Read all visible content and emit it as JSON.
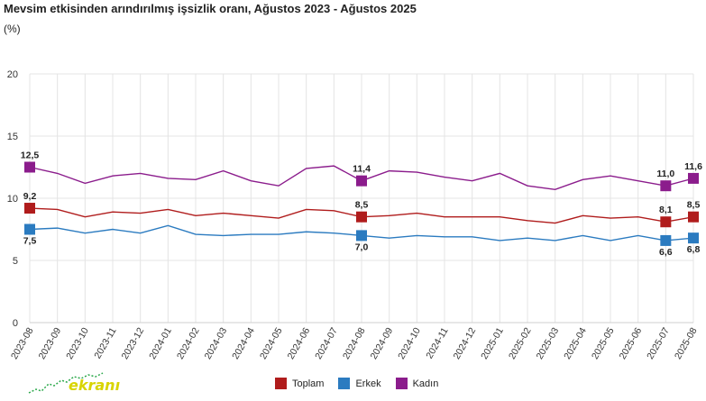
{
  "header": {
    "title": "Mevsim etkisinden arındırılmış işsizlik oranı, Ağustos 2023 - Ağustos 2025",
    "unit": "(%)"
  },
  "logo": {
    "text": "ekranı"
  },
  "chart_data": {
    "type": "line",
    "title": "Mevsim etkisinden arındırılmış işsizlik oranı, Ağustos 2023 - Ağustos 2025",
    "ylabel": "(%)",
    "ylim": [
      0,
      20
    ],
    "yticks": [
      0,
      5,
      10,
      15,
      20
    ],
    "grid": true,
    "legend_position": "bottom",
    "categories": [
      "2023-08",
      "2023-09",
      "2023-10",
      "2023-11",
      "2023-12",
      "2024-01",
      "2024-02",
      "2024-03",
      "2024-04",
      "2024-05",
      "2024-06",
      "2024-07",
      "2024-08",
      "2024-09",
      "2024-10",
      "2024-11",
      "2024-12",
      "2025-01",
      "2025-02",
      "2025-03",
      "2025-04",
      "2025-05",
      "2025-06",
      "2025-07",
      "2025-08"
    ],
    "series": [
      {
        "name": "Toplam",
        "color": "#b01c1c",
        "values": [
          9.2,
          9.1,
          8.5,
          8.9,
          8.8,
          9.1,
          8.6,
          8.8,
          8.6,
          8.4,
          9.1,
          9.0,
          8.5,
          8.6,
          8.8,
          8.5,
          8.5,
          8.5,
          8.2,
          8.0,
          8.6,
          8.4,
          8.5,
          8.1,
          8.5
        ],
        "markers": [
          0,
          12,
          23,
          24
        ],
        "labels": [
          {
            "index": 0,
            "text": "9,2"
          },
          {
            "index": 12,
            "text": "8,5"
          },
          {
            "index": 23,
            "text": "8,1"
          },
          {
            "index": 24,
            "text": "8,5"
          }
        ]
      },
      {
        "name": "Erkek",
        "color": "#2b7bc0",
        "values": [
          7.5,
          7.6,
          7.2,
          7.5,
          7.2,
          7.8,
          7.1,
          7.0,
          7.1,
          7.1,
          7.3,
          7.2,
          7.0,
          6.8,
          7.0,
          6.9,
          6.9,
          6.6,
          6.8,
          6.6,
          7.0,
          6.6,
          7.0,
          6.6,
          6.8
        ],
        "markers": [
          0,
          12,
          23,
          24
        ],
        "labels": [
          {
            "index": 0,
            "text": "7,5"
          },
          {
            "index": 12,
            "text": "7,0"
          },
          {
            "index": 23,
            "text": "6,6"
          },
          {
            "index": 24,
            "text": "6,8"
          }
        ]
      },
      {
        "name": "Kadın",
        "color": "#8b1c8c",
        "values": [
          12.5,
          12.0,
          11.2,
          11.8,
          12.0,
          11.6,
          11.5,
          12.2,
          11.4,
          11.0,
          12.4,
          12.6,
          11.4,
          12.2,
          12.1,
          11.7,
          11.4,
          12.0,
          11.0,
          10.7,
          11.5,
          11.8,
          11.4,
          11.0,
          11.6
        ],
        "markers": [
          0,
          12,
          23,
          24
        ],
        "labels": [
          {
            "index": 0,
            "text": "12,5"
          },
          {
            "index": 12,
            "text": "11,4"
          },
          {
            "index": 23,
            "text": "11,0"
          },
          {
            "index": 24,
            "text": "11,6"
          }
        ]
      }
    ]
  }
}
